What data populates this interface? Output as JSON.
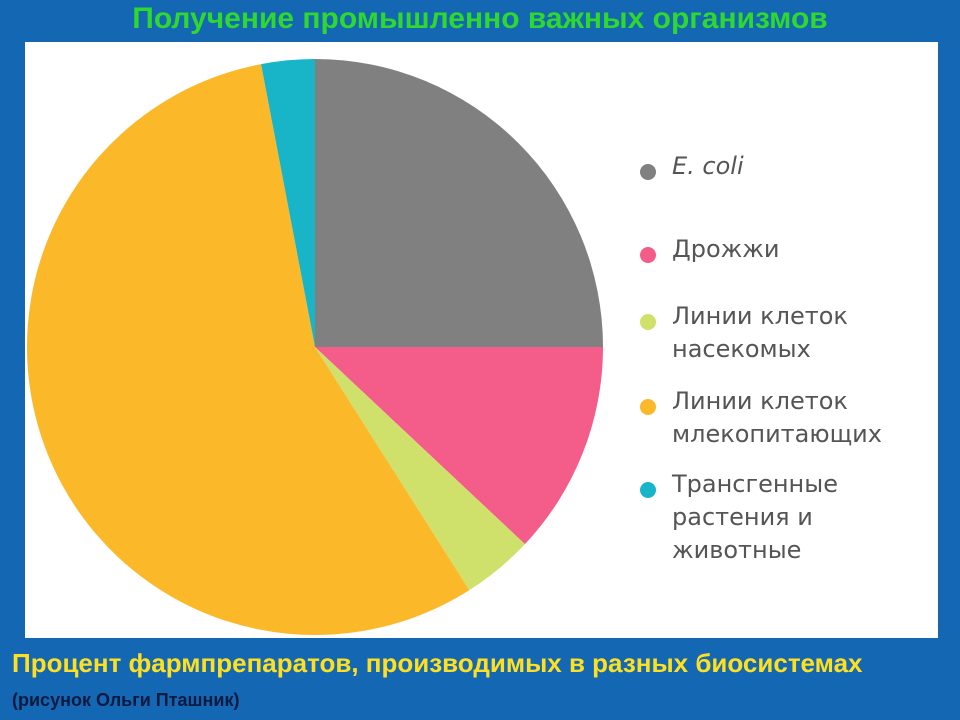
{
  "chart_data": {
    "type": "pie",
    "title": "Получение промышленно важных организмов",
    "categories": [
      "E. coli",
      "Дрожжи",
      "Линии клеток насекомых",
      "Линии клеток млекопитающих",
      "Трансгенные растения и животные"
    ],
    "values": [
      25,
      12,
      4,
      56,
      3
    ],
    "colors": [
      "#808080",
      "#f45d8a",
      "#cfe06b",
      "#fbb92a",
      "#18b5c8"
    ],
    "caption": "Процент фармпрепаратов, производимых в разных биосистемах",
    "caption_note": "(рисунок Ольги Пташник)"
  }
}
